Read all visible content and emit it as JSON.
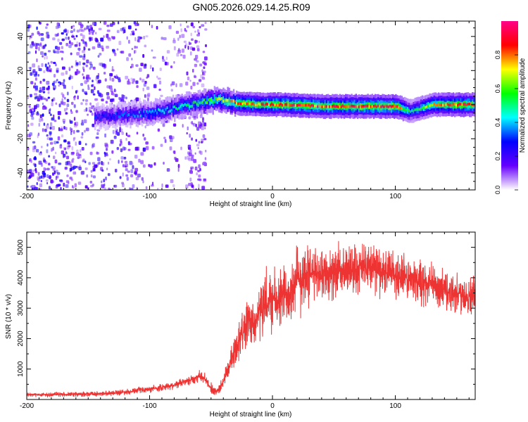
{
  "title": "GN05.2026.029.14.25.R09",
  "colors": {
    "snr_line": "#ee3333",
    "axis": "#000000",
    "plot_bg": "#ffffff"
  },
  "chart_data": [
    {
      "type": "heatmap",
      "name": "spectrogram",
      "title": "GN05.2026.029.14.25.R09",
      "xlabel": "Height of straight line (km)",
      "ylabel": "Frequency (Hz)",
      "xlim": [
        -200,
        165
      ],
      "ylim": [
        -50,
        49
      ],
      "xticks": [
        -200,
        -100,
        0,
        100
      ],
      "yticks": [
        -40,
        -20,
        0,
        20,
        40
      ],
      "colorbar": {
        "label": "Normalized spectral amplitude",
        "range": [
          0,
          1
        ],
        "ticks": [
          "0.0",
          "0.2",
          "0.4",
          "0.6",
          "0.8"
        ],
        "colormap": [
          "#ffffff",
          "#6600ff",
          "#0000ff",
          "#00ffff",
          "#00ff00",
          "#ffff00",
          "#ff0000",
          "#ff0088"
        ]
      },
      "ridge": [
        {
          "x": -140,
          "freq": -7,
          "amp": 0.3
        },
        {
          "x": -120,
          "freq": -6,
          "amp": 0.35
        },
        {
          "x": -100,
          "freq": -5,
          "amp": 0.4
        },
        {
          "x": -80,
          "freq": -2,
          "amp": 0.5
        },
        {
          "x": -60,
          "freq": 1,
          "amp": 0.55
        },
        {
          "x": -45,
          "freq": 3,
          "amp": 0.7
        },
        {
          "x": -30,
          "freq": 1,
          "amp": 0.8
        },
        {
          "x": -10,
          "freq": 0,
          "amp": 0.85
        },
        {
          "x": 10,
          "freq": 0,
          "amp": 0.9
        },
        {
          "x": 40,
          "freq": -1,
          "amp": 0.88
        },
        {
          "x": 70,
          "freq": -1,
          "amp": 0.9
        },
        {
          "x": 100,
          "freq": -1,
          "amp": 0.92
        },
        {
          "x": 112,
          "freq": -4,
          "amp": 0.5
        },
        {
          "x": 130,
          "freq": 0,
          "amp": 0.75
        },
        {
          "x": 150,
          "freq": 0,
          "amp": 0.9
        },
        {
          "x": 165,
          "freq": 0,
          "amp": 0.85
        }
      ],
      "noise_region": [
        -200,
        -55
      ]
    },
    {
      "type": "line",
      "name": "snr",
      "xlabel": "Height of straight line (km)",
      "ylabel": "SNR (10 * v/v)",
      "xlim": [
        -200,
        165
      ],
      "ylim": [
        0,
        5500
      ],
      "xticks": [
        -200,
        -100,
        0,
        100
      ],
      "yticks": [
        1000,
        2000,
        3000,
        4000,
        5000
      ],
      "series": [
        {
          "name": "SNR",
          "x": [
            -200,
            -180,
            -160,
            -140,
            -120,
            -100,
            -80,
            -70,
            -60,
            -55,
            -50,
            -45,
            -40,
            -35,
            -30,
            -25,
            -20,
            -15,
            -10,
            -5,
            0,
            5,
            10,
            15,
            20,
            25,
            30,
            40,
            50,
            60,
            70,
            80,
            90,
            100,
            110,
            120,
            130,
            140,
            150,
            165
          ],
          "y": [
            150,
            160,
            170,
            190,
            250,
            330,
            480,
            600,
            750,
            700,
            350,
            250,
            600,
            1100,
            1700,
            2200,
            2600,
            2500,
            2900,
            3100,
            3300,
            3200,
            3500,
            3600,
            3900,
            4100,
            4100,
            4200,
            4100,
            4200,
            4300,
            4350,
            4200,
            4100,
            3950,
            3850,
            3750,
            3600,
            3500,
            3400
          ]
        }
      ]
    }
  ]
}
